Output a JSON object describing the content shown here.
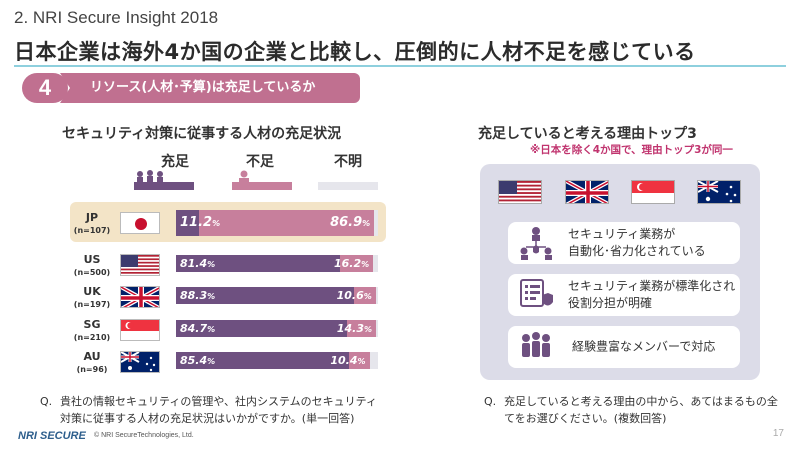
{
  "header": {
    "section": "2. NRI Secure Insight 2018",
    "title": "日本企業は海外4か国の企業と比較し、圧倒的に人材不足を感じている"
  },
  "question": {
    "number": "4",
    "banner": "リソース(人材･予算)は充足しているか"
  },
  "left": {
    "title": "セキュリティ対策に従事する人材の充足状況",
    "columns": [
      "充足",
      "不足",
      "不明"
    ],
    "footnote_q": "Q.",
    "footnote": "貴社の情報セキュリティの管理や、社内システムのセキュリティ対策に従事する人材の充足状況はいかがですか。(単一回答)"
  },
  "chart_data": {
    "type": "bar",
    "stacked": true,
    "orientation": "horizontal",
    "categories": [
      "JP",
      "US",
      "UK",
      "SG",
      "AU"
    ],
    "category_n": [
      "(n=107)",
      "(n=500)",
      "(n=197)",
      "(n=210)",
      "(n=96)"
    ],
    "series": [
      {
        "name": "充足",
        "values": [
          11.2,
          81.4,
          88.3,
          84.7,
          85.4
        ],
        "color": "#6e5080"
      },
      {
        "name": "不足",
        "values": [
          86.9,
          16.2,
          10.6,
          14.3,
          10.4
        ],
        "color": "#c77f9c"
      },
      {
        "name": "不明",
        "values": [
          1.9,
          2.4,
          1.1,
          1.0,
          4.2
        ],
        "color": "#e6e6ec"
      }
    ],
    "labels": {
      "sufficient": [
        "11.2",
        "81.4",
        "88.3",
        "84.7",
        "85.4"
      ],
      "insufficient": [
        "86.9",
        "16.2",
        "10.6",
        "14.3",
        "10.4"
      ]
    },
    "unit": "%",
    "xlim": [
      0,
      100
    ]
  },
  "right": {
    "title": "充足していると考える理由トップ3",
    "note": "※日本を除く4か国で、理由トップ3が同一",
    "flags": [
      "US",
      "UK",
      "SG",
      "AU"
    ],
    "reasons": [
      {
        "line1": "セキュリティ業務が",
        "line2": "自動化･省力化されている",
        "icon": "automation-icon"
      },
      {
        "line1": "セキュリティ業務が標準化され",
        "line2": "役割分担が明確",
        "icon": "standardization-icon"
      },
      {
        "line1": "経験豊富なメンバーで対応",
        "line2": "",
        "icon": "team-icon"
      }
    ],
    "footnote_q": "Q.",
    "footnote": "充足していると考える理由の中から、あてはまるもの全てをお選びください。(複数回答)"
  },
  "footer": {
    "logo": "NRI SECURE",
    "copyright": "© NRI SecureTechnologies, Ltd.",
    "page": "17"
  },
  "colors": {
    "accent": "#c07090",
    "sufficient": "#6e5080",
    "insufficient": "#c77f9c",
    "note_red": "#c0336e",
    "rule": "#8ed0de"
  }
}
